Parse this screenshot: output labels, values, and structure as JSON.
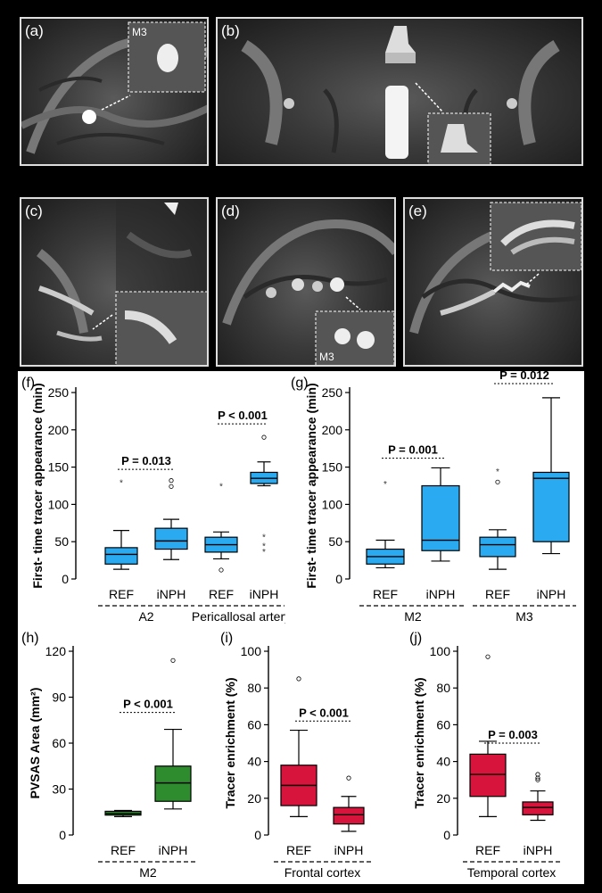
{
  "images": [
    {
      "label": "(a)",
      "inset": "M3"
    },
    {
      "label": "(b)",
      "inset": ""
    },
    {
      "label": "(c)",
      "inset": ""
    },
    {
      "label": "(d)",
      "inset": "M3"
    },
    {
      "label": "(e)",
      "inset": ""
    }
  ],
  "colors": {
    "blue": "#2aaaf0",
    "green": "#2e8b2e",
    "red": "#d6143c"
  },
  "chart_data": [
    {
      "panel": "(f)",
      "type": "box",
      "ylabel": "First- time tracer appearance (min)",
      "ylim": [
        0,
        250
      ],
      "yticks": [
        0,
        50,
        100,
        150,
        200,
        250
      ],
      "categories": [
        "REF",
        "iNPH",
        "REF",
        "iNPH"
      ],
      "groups": [
        "A2",
        "Pericallosal artery"
      ],
      "boxes": [
        {
          "group": "A2",
          "name": "REF",
          "whisker_low": 13,
          "q1": 20,
          "median": 33,
          "q3": 42,
          "whisker_high": 65,
          "outliers": [],
          "extremes": [
            130
          ]
        },
        {
          "group": "A2",
          "name": "iNPH",
          "whisker_low": 26,
          "q1": 40,
          "median": 51,
          "q3": 68,
          "whisker_high": 80,
          "outliers": [
            132,
            124
          ],
          "extremes": []
        },
        {
          "group": "Pericallosal artery",
          "name": "REF",
          "whisker_low": 27,
          "q1": 36,
          "median": 46,
          "q3": 56,
          "whisker_high": 63,
          "outliers": [
            12
          ],
          "extremes": [
            125
          ]
        },
        {
          "group": "Pericallosal artery",
          "name": "iNPH",
          "whisker_low": 125,
          "q1": 128,
          "median": 135,
          "q3": 143,
          "whisker_high": 157,
          "outliers": [
            190
          ],
          "extremes": [
            57,
            45,
            37
          ]
        }
      ],
      "annotations": [
        {
          "text": "P = 0.013",
          "y": 147
        },
        {
          "text": "P < 0.001",
          "y": 208
        }
      ]
    },
    {
      "panel": "(g)",
      "type": "box",
      "ylabel": "First- time tracer appearance (min)",
      "ylim": [
        0,
        250
      ],
      "yticks": [
        0,
        50,
        100,
        150,
        200,
        250
      ],
      "categories": [
        "REF",
        "iNPH",
        "REF",
        "iNPH"
      ],
      "groups": [
        "M2",
        "M3"
      ],
      "boxes": [
        {
          "group": "M2",
          "name": "REF",
          "whisker_low": 15,
          "q1": 20,
          "median": 30,
          "q3": 40,
          "whisker_high": 52,
          "outliers": [],
          "extremes": [
            128
          ]
        },
        {
          "group": "M2",
          "name": "iNPH",
          "whisker_low": 24,
          "q1": 38,
          "median": 52,
          "q3": 125,
          "whisker_high": 149,
          "outliers": [],
          "extremes": []
        },
        {
          "group": "M3",
          "name": "REF",
          "whisker_low": 13,
          "q1": 30,
          "median": 46,
          "q3": 56,
          "whisker_high": 66,
          "outliers": [
            130
          ],
          "extremes": [
            145
          ]
        },
        {
          "group": "M3",
          "name": "iNPH",
          "whisker_low": 34,
          "q1": 50,
          "median": 135,
          "q3": 143,
          "whisker_high": 243,
          "outliers": [],
          "extremes": []
        }
      ],
      "annotations": [
        {
          "text": "P = 0.001",
          "y": 162
        },
        {
          "text": "P = 0.012",
          "y": 262
        }
      ]
    },
    {
      "panel": "(h)",
      "type": "box",
      "ylabel": "PVSAS Area (mm²)",
      "ylim": [
        0,
        120
      ],
      "yticks": [
        0,
        30,
        60,
        90,
        120
      ],
      "categories": [
        "REF",
        "iNPH"
      ],
      "groups": [
        "M2"
      ],
      "boxes": [
        {
          "group": "M2",
          "name": "REF",
          "whisker_low": 12,
          "q1": 13,
          "median": 14,
          "q3": 15.5,
          "whisker_high": 16,
          "outliers": [],
          "extremes": []
        },
        {
          "group": "M2",
          "name": "iNPH",
          "whisker_low": 17,
          "q1": 22,
          "median": 34,
          "q3": 45,
          "whisker_high": 69,
          "outliers": [
            114
          ],
          "extremes": []
        }
      ],
      "annotations": [
        {
          "text": "P < 0.001",
          "y": 80
        }
      ]
    },
    {
      "panel": "(i)",
      "type": "box",
      "ylabel": "Tracer enrichment (%)",
      "ylim": [
        0,
        100
      ],
      "yticks": [
        0,
        20,
        40,
        60,
        80,
        100
      ],
      "categories": [
        "REF",
        "iNPH"
      ],
      "groups": [
        "Frontal cortex"
      ],
      "boxes": [
        {
          "group": "Frontal cortex",
          "name": "REF",
          "whisker_low": 10,
          "q1": 16,
          "median": 27,
          "q3": 38,
          "whisker_high": 57,
          "outliers": [
            85
          ],
          "extremes": []
        },
        {
          "group": "Frontal cortex",
          "name": "iNPH",
          "whisker_low": 2,
          "q1": 6,
          "median": 11,
          "q3": 15,
          "whisker_high": 21,
          "outliers": [
            31
          ],
          "extremes": []
        }
      ],
      "annotations": [
        {
          "text": "P < 0.001",
          "y": 62
        }
      ]
    },
    {
      "panel": "(j)",
      "type": "box",
      "ylabel": "Tracer enrichment (%)",
      "ylim": [
        0,
        100
      ],
      "yticks": [
        0,
        20,
        40,
        60,
        80,
        100
      ],
      "categories": [
        "REF",
        "iNPH"
      ],
      "groups": [
        "Temporal cortex"
      ],
      "boxes": [
        {
          "group": "Temporal cortex",
          "name": "REF",
          "whisker_low": 10,
          "q1": 21,
          "median": 33,
          "q3": 44,
          "whisker_high": 51,
          "outliers": [
            97
          ],
          "extremes": []
        },
        {
          "group": "Temporal cortex",
          "name": "iNPH",
          "whisker_low": 8,
          "q1": 11,
          "median": 15,
          "q3": 18,
          "whisker_high": 24,
          "outliers": [
            33,
            31,
            30
          ],
          "extremes": []
        }
      ],
      "annotations": [
        {
          "text": "P = 0.003",
          "y": 50
        }
      ]
    }
  ]
}
